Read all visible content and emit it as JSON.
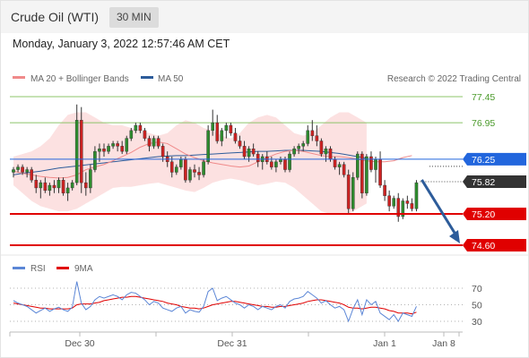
{
  "header": {
    "title": "Crude Oil (WTI)",
    "timeframe": "30 MIN"
  },
  "datetime": "Monday, January 3, 2022 12:57:46 AM CET",
  "colors": {
    "bullish": "#2e8b2e",
    "bearish": "#cc2222",
    "ma20": "#f08a8a",
    "ma50": "#2d5c9a",
    "band_fill": "#fbdcdc",
    "resistance": "#8cc46a",
    "support": "#e00000",
    "pivot": "#2266dd",
    "arrow": "#2d5c9a",
    "rsi": "#5b86d6",
    "rsi_ma": "#e00000"
  },
  "legend": {
    "ma20": "MA 20 + Bollinger Bands",
    "ma50": "MA 50",
    "credit": "Research © 2022 Trading Central"
  },
  "chart_data": [
    {
      "type": "candlestick",
      "title": "Crude Oil (WTI)",
      "ylim": [
        74.4,
        77.6
      ],
      "levels": [
        {
          "value": 77.45,
          "label": "77.45",
          "kind": "resistance"
        },
        {
          "value": 76.95,
          "label": "76.95",
          "kind": "resistance"
        },
        {
          "value": 76.25,
          "label": "76.25",
          "kind": "pivot"
        },
        {
          "value": 75.82,
          "label": "75.82",
          "kind": "last"
        },
        {
          "value": 75.2,
          "label": "75.20",
          "kind": "support"
        },
        {
          "value": 74.6,
          "label": "74.60",
          "kind": "support"
        }
      ],
      "x_ticks": [
        {
          "label": "Dec 30",
          "index": 16
        },
        {
          "label": "Dec 31",
          "index": 51
        },
        {
          "label": "Jan 1",
          "index": 86
        },
        {
          "label": "Jan 8",
          "index": 100
        }
      ],
      "candles": [
        [
          76.0,
          76.1,
          75.9,
          76.05
        ],
        [
          76.05,
          76.15,
          76.0,
          76.1
        ],
        [
          76.1,
          76.15,
          75.95,
          76.0
        ],
        [
          76.0,
          76.1,
          75.9,
          76.05
        ],
        [
          76.05,
          76.1,
          75.8,
          75.85
        ],
        [
          75.85,
          75.95,
          75.6,
          75.7
        ],
        [
          75.7,
          75.85,
          75.5,
          75.8
        ],
        [
          75.8,
          75.9,
          75.6,
          75.65
        ],
        [
          75.65,
          75.8,
          75.55,
          75.75
        ],
        [
          75.75,
          75.85,
          75.6,
          75.7
        ],
        [
          75.7,
          75.9,
          75.6,
          75.85
        ],
        [
          75.85,
          75.9,
          75.55,
          75.6
        ],
        [
          75.6,
          75.8,
          75.45,
          75.7
        ],
        [
          75.7,
          75.85,
          75.65,
          75.8
        ],
        [
          75.8,
          77.3,
          75.75,
          77.0
        ],
        [
          77.0,
          77.25,
          75.6,
          75.8
        ],
        [
          75.8,
          76.0,
          75.55,
          75.7
        ],
        [
          75.7,
          76.15,
          75.6,
          76.05
        ],
        [
          76.05,
          76.5,
          76.0,
          76.4
        ],
        [
          76.4,
          76.55,
          76.2,
          76.45
        ],
        [
          76.45,
          76.55,
          76.3,
          76.4
        ],
        [
          76.4,
          76.55,
          76.35,
          76.5
        ],
        [
          76.5,
          76.6,
          76.45,
          76.55
        ],
        [
          76.55,
          76.6,
          76.4,
          76.5
        ],
        [
          76.5,
          76.6,
          76.35,
          76.4
        ],
        [
          76.4,
          76.7,
          76.35,
          76.65
        ],
        [
          76.65,
          76.85,
          76.6,
          76.8
        ],
        [
          76.8,
          76.95,
          76.75,
          76.9
        ],
        [
          76.9,
          76.95,
          76.75,
          76.8
        ],
        [
          76.8,
          76.85,
          76.6,
          76.65
        ],
        [
          76.65,
          76.7,
          76.4,
          76.5
        ],
        [
          76.5,
          76.7,
          76.45,
          76.65
        ],
        [
          76.65,
          76.7,
          76.45,
          76.5
        ],
        [
          76.5,
          76.55,
          76.2,
          76.3
        ],
        [
          76.3,
          76.4,
          76.1,
          76.2
        ],
        [
          76.2,
          76.3,
          75.9,
          76.0
        ],
        [
          76.0,
          76.15,
          75.95,
          76.1
        ],
        [
          76.1,
          76.3,
          76.05,
          76.25
        ],
        [
          76.25,
          76.3,
          75.8,
          75.85
        ],
        [
          75.85,
          76.1,
          75.8,
          76.05
        ],
        [
          76.05,
          76.15,
          75.9,
          76.0
        ],
        [
          76.0,
          76.1,
          75.85,
          75.95
        ],
        [
          75.95,
          76.25,
          75.9,
          76.2
        ],
        [
          76.2,
          76.9,
          76.15,
          76.8
        ],
        [
          76.8,
          77.2,
          76.7,
          76.95
        ],
        [
          76.95,
          77.1,
          76.55,
          76.6
        ],
        [
          76.6,
          76.85,
          76.5,
          76.8
        ],
        [
          76.8,
          76.95,
          76.65,
          76.9
        ],
        [
          76.9,
          76.95,
          76.7,
          76.75
        ],
        [
          76.75,
          76.85,
          76.55,
          76.6
        ],
        [
          76.6,
          76.7,
          76.45,
          76.5
        ],
        [
          76.5,
          76.6,
          76.25,
          76.3
        ],
        [
          76.3,
          76.5,
          76.2,
          76.45
        ],
        [
          76.45,
          76.55,
          76.3,
          76.35
        ],
        [
          76.35,
          76.4,
          76.1,
          76.2
        ],
        [
          76.2,
          76.35,
          76.05,
          76.3
        ],
        [
          76.3,
          76.4,
          76.15,
          76.2
        ],
        [
          76.2,
          76.3,
          76.05,
          76.1
        ],
        [
          76.1,
          76.25,
          76.0,
          76.2
        ],
        [
          76.2,
          76.3,
          76.15,
          76.25
        ],
        [
          76.25,
          76.3,
          76.0,
          76.05
        ],
        [
          76.05,
          76.4,
          76.0,
          76.35
        ],
        [
          76.35,
          76.5,
          76.3,
          76.45
        ],
        [
          76.45,
          76.55,
          76.35,
          76.5
        ],
        [
          76.5,
          76.6,
          76.4,
          76.55
        ],
        [
          76.55,
          76.9,
          76.5,
          76.8
        ],
        [
          76.8,
          77.0,
          76.6,
          76.7
        ],
        [
          76.7,
          76.9,
          76.5,
          76.6
        ],
        [
          76.6,
          76.65,
          76.3,
          76.35
        ],
        [
          76.35,
          76.5,
          76.2,
          76.45
        ],
        [
          76.45,
          76.5,
          76.2,
          76.25
        ],
        [
          76.25,
          76.3,
          76.05,
          76.1
        ],
        [
          76.1,
          76.2,
          75.95,
          76.15
        ],
        [
          76.15,
          76.2,
          75.9,
          75.95
        ],
        [
          75.95,
          76.05,
          75.2,
          75.3
        ],
        [
          75.3,
          76.0,
          75.25,
          75.9
        ],
        [
          75.9,
          76.4,
          75.85,
          76.35
        ],
        [
          76.35,
          76.4,
          75.5,
          75.6
        ],
        [
          75.6,
          76.35,
          75.55,
          76.3
        ],
        [
          76.3,
          76.4,
          76.0,
          76.05
        ],
        [
          76.05,
          76.3,
          75.8,
          76.25
        ],
        [
          76.25,
          76.4,
          75.7,
          75.75
        ],
        [
          75.75,
          75.85,
          75.45,
          75.55
        ],
        [
          75.55,
          75.65,
          75.25,
          75.35
        ],
        [
          75.35,
          75.55,
          75.3,
          75.5
        ],
        [
          75.5,
          75.6,
          75.05,
          75.15
        ],
        [
          75.15,
          75.5,
          75.1,
          75.45
        ],
        [
          75.45,
          75.55,
          75.3,
          75.4
        ],
        [
          75.4,
          75.5,
          75.25,
          75.3
        ],
        [
          75.3,
          75.85,
          75.25,
          75.8
        ]
      ],
      "ma20": [
        76.02,
        75.98,
        75.95,
        75.92,
        75.9,
        75.89,
        75.9,
        75.95,
        76.05,
        76.1,
        76.15,
        76.22,
        76.3,
        76.38,
        76.48,
        76.55,
        76.58,
        76.55,
        76.45,
        76.35,
        76.28,
        76.22,
        76.18,
        76.15,
        76.12,
        76.1,
        76.12,
        76.2,
        76.28,
        76.35,
        76.4,
        76.42,
        76.4,
        76.36,
        76.32,
        76.3,
        76.3,
        76.28,
        76.25,
        76.22,
        76.2,
        76.2,
        76.22,
        76.28,
        76.32,
        76.32,
        76.28,
        76.2,
        76.08,
        75.98,
        75.88,
        75.78,
        75.7,
        75.62,
        75.56,
        75.52,
        75.48
      ],
      "ma20_x": [
        0,
        2,
        4,
        6,
        8,
        10,
        12,
        14,
        16,
        18,
        20,
        22,
        24,
        26,
        28,
        30,
        32,
        34,
        36,
        38,
        40,
        42,
        44,
        46,
        48,
        50,
        52,
        54,
        56,
        58,
        60,
        62,
        64,
        66,
        68,
        70,
        72,
        74,
        76,
        78,
        80,
        82,
        84,
        86,
        88,
        90,
        92,
        94,
        96,
        98,
        100,
        102,
        104,
        106,
        108,
        110,
        112
      ],
      "band_upper": [
        76.3,
        76.35,
        76.4,
        76.5,
        76.65,
        76.9,
        77.1,
        77.15,
        77.15,
        77.05,
        76.95,
        76.9,
        76.9,
        76.85,
        76.8,
        76.75,
        76.7,
        76.75,
        76.9,
        77.0,
        76.95,
        76.85,
        76.8,
        76.7,
        76.65,
        76.75,
        76.95,
        77.05,
        77.1,
        77.05,
        76.9,
        76.75,
        76.7,
        76.75,
        76.9,
        77.05,
        77.15,
        77.15,
        77.05,
        76.95
      ],
      "band_lower": [
        75.75,
        75.6,
        75.45,
        75.35,
        75.3,
        75.25,
        75.25,
        75.3,
        75.4,
        75.5,
        75.6,
        75.7,
        75.72,
        75.72,
        75.75,
        75.78,
        75.8,
        75.75,
        75.7,
        75.65,
        75.62,
        75.7,
        75.8,
        75.85,
        75.88,
        75.85,
        75.8,
        75.75,
        75.78,
        75.82,
        75.8,
        75.7,
        75.55,
        75.4,
        75.25,
        75.2,
        75.18,
        75.2,
        75.3,
        75.4
      ],
      "band_x": [
        0,
        2,
        4,
        6,
        8,
        10,
        12,
        14,
        16,
        18,
        20,
        22,
        24,
        26,
        28,
        30,
        32,
        34,
        36,
        38,
        40,
        42,
        44,
        46,
        48,
        50,
        52,
        54,
        56,
        58,
        60,
        62,
        64,
        66,
        68,
        70,
        72,
        74,
        76,
        78
      ],
      "ma50": [
        75.95,
        75.98,
        76.0,
        76.02,
        76.05,
        76.08,
        76.1,
        76.12,
        76.14,
        76.16,
        76.18,
        76.2,
        76.22,
        76.24,
        76.26,
        76.28,
        76.3,
        76.31,
        76.32,
        76.32,
        76.33,
        76.34,
        76.35,
        76.36,
        76.37,
        76.38,
        76.39,
        76.4,
        76.4,
        76.41,
        76.42,
        76.42,
        76.42,
        76.41,
        76.4,
        76.38,
        76.36,
        76.33,
        76.3,
        76.27
      ],
      "ma50_x": [
        0,
        2,
        4,
        6,
        8,
        10,
        12,
        14,
        16,
        18,
        20,
        22,
        24,
        26,
        28,
        30,
        32,
        34,
        36,
        38,
        40,
        42,
        44,
        46,
        48,
        50,
        52,
        54,
        56,
        58,
        60,
        62,
        64,
        66,
        68,
        70,
        72,
        74,
        76,
        78
      ],
      "projection": {
        "from": 75.82,
        "to": 74.6
      }
    },
    {
      "type": "line",
      "title": "RSI",
      "legend": [
        {
          "name": "RSI",
          "color": "#5b86d6"
        },
        {
          "name": "9MA",
          "color": "#e00000"
        }
      ],
      "ylim": [
        20,
        80
      ],
      "y_ticks": [
        70,
        50,
        30
      ],
      "series": [
        {
          "name": "RSI",
          "values": [
            55,
            52,
            50,
            48,
            44,
            40,
            43,
            46,
            42,
            45,
            47,
            44,
            42,
            47,
            78,
            52,
            44,
            48,
            56,
            60,
            58,
            60,
            62,
            60,
            56,
            62,
            65,
            64,
            60,
            56,
            50,
            54,
            52,
            46,
            44,
            42,
            46,
            48,
            40,
            44,
            42,
            41,
            48,
            66,
            70,
            55,
            58,
            60,
            56,
            52,
            50,
            46,
            50,
            48,
            44,
            48,
            46,
            44,
            48,
            50,
            46,
            54,
            57,
            58,
            60,
            66,
            62,
            58,
            52,
            55,
            50,
            46,
            48,
            44,
            30,
            45,
            56,
            38,
            56,
            50,
            54,
            40,
            36,
            32,
            38,
            30,
            40,
            38,
            36,
            48
          ]
        },
        {
          "name": "9MA",
          "values": [
            52,
            51,
            50,
            49,
            48,
            47,
            46,
            46,
            45,
            45,
            45,
            45,
            45,
            46,
            50,
            51,
            51,
            51,
            52,
            53,
            55,
            56,
            57,
            58,
            59,
            59,
            60,
            60,
            59,
            58,
            57,
            56,
            55,
            54,
            52,
            51,
            50,
            48,
            47,
            46,
            46,
            45,
            46,
            48,
            50,
            51,
            52,
            53,
            54,
            54,
            53,
            52,
            51,
            50,
            49,
            48,
            48,
            47,
            47,
            48,
            48,
            49,
            50,
            51,
            52,
            54,
            55,
            56,
            56,
            55,
            54,
            53,
            52,
            50,
            47,
            46,
            46,
            45,
            46,
            47,
            47,
            46,
            45,
            43,
            42,
            40,
            40,
            40,
            39,
            41
          ]
        }
      ]
    }
  ]
}
